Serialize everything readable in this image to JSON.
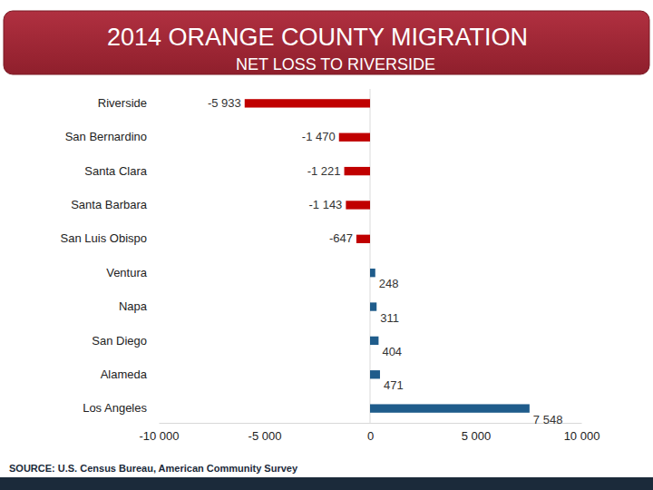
{
  "chart_data": {
    "type": "bar",
    "orientation": "horizontal",
    "title": "2014 ORANGE COUNTY MIGRATION",
    "subtitle": "NET LOSS TO RIVERSIDE",
    "source": "SOURCE: U.S. Census Bureau, American Community Survey",
    "categories": [
      "Riverside",
      "San Bernardino",
      "Santa Clara",
      "Santa Barbara",
      "San Luis Obispo",
      "Ventura",
      "Napa",
      "San Diego",
      "Alameda",
      "Los Angeles"
    ],
    "values": [
      -5933,
      -1470,
      -1221,
      -1143,
      -647,
      248,
      311,
      404,
      471,
      7548
    ],
    "value_labels": [
      "-5 933",
      "-1 470",
      "-1 221",
      "-1 143",
      "-647",
      "248",
      "311",
      "404",
      "471",
      "7 548"
    ],
    "colors": [
      "#c00000",
      "#c00000",
      "#c00000",
      "#c00000",
      "#c00000",
      "#1f5c8b",
      "#1f5c8b",
      "#1f5c8b",
      "#1f5c8b",
      "#1f5c8b"
    ],
    "data_labels": true,
    "xlim": [
      -10000,
      10000
    ],
    "xticks": [
      {
        "value": -10000,
        "label": "-10 000"
      },
      {
        "value": -5000,
        "label": "-5 000"
      },
      0,
      {
        "value": 5000,
        "label": "5 000"
      },
      {
        "value": 10000,
        "label": "10 000"
      }
    ],
    "grid": false
  }
}
